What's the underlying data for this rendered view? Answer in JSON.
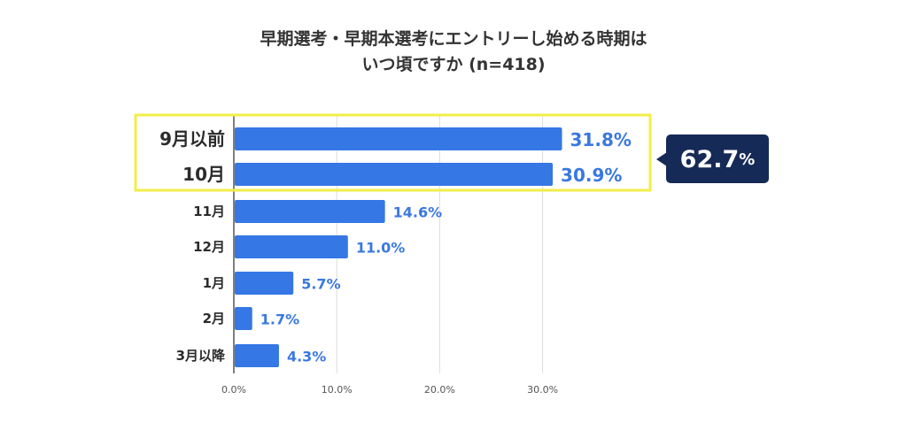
{
  "chart_data": {
    "type": "bar",
    "orientation": "horizontal",
    "title": "早期選考・早期本選考にエントリーし始める時期は",
    "subtitle": "いつ頃ですか (n=418)",
    "categories": [
      "9月以前",
      "10月",
      "11月",
      "12月",
      "1月",
      "2月",
      "3月以降"
    ],
    "values": [
      31.8,
      30.9,
      14.6,
      11.0,
      5.7,
      1.7,
      4.3
    ],
    "value_labels": [
      "31.8%",
      "30.9%",
      "14.6%",
      "11.0%",
      "5.7%",
      "1.7%",
      "4.3%"
    ],
    "xlim": [
      0,
      35
    ],
    "ticks": [
      0,
      10,
      20,
      30
    ],
    "tick_labels": [
      "0.0%",
      "10.0%",
      "20.0%",
      "30.0%"
    ],
    "grid": true,
    "xlabel": "",
    "ylabel": "",
    "highlight": {
      "categories": [
        "9月以前",
        "10月"
      ],
      "total_value": 62.7,
      "total_label": "62.7",
      "total_unit": "%"
    }
  },
  "colors": {
    "bar": "#3577e5",
    "value_text": "#3a78e0",
    "highlight_border": "#f2ee4a",
    "callout_bg": "#162a57",
    "grid": "#dddddd",
    "axis": "#555555"
  }
}
